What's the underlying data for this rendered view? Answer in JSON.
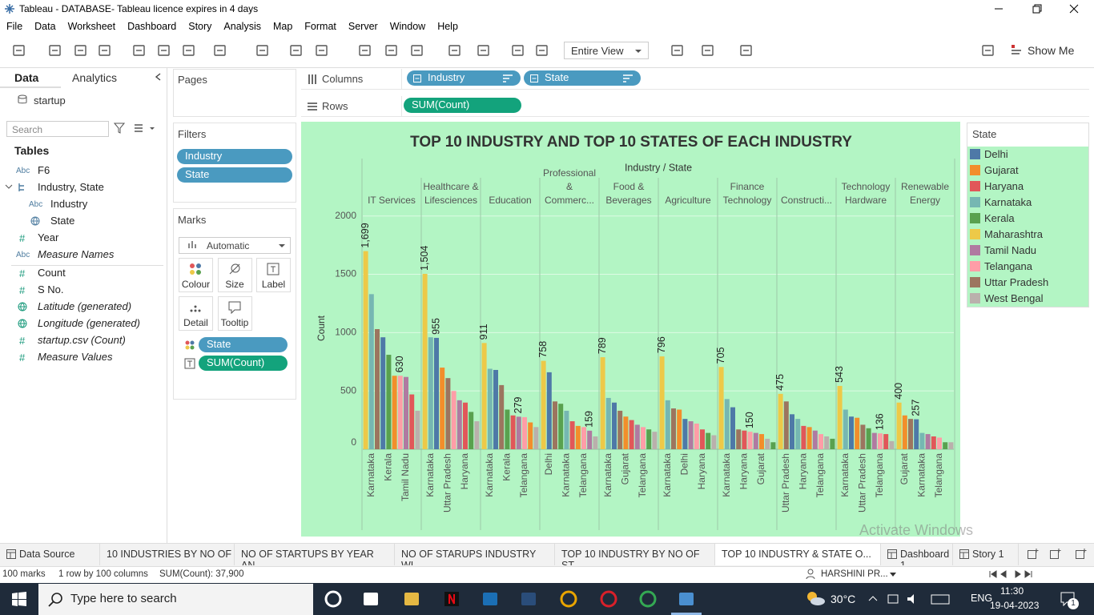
{
  "window": {
    "title": "Tableau - DATABASE- Tableau licence expires in 4 days"
  },
  "menu": [
    "File",
    "Data",
    "Worksheet",
    "Dashboard",
    "Story",
    "Analysis",
    "Map",
    "Format",
    "Server",
    "Window",
    "Help"
  ],
  "toolbar": {
    "fit": "Entire View",
    "show_me": "Show Me"
  },
  "data_pane": {
    "tabs": [
      "Data",
      "Analytics"
    ],
    "source": "startup",
    "search": "Search",
    "heading": "Tables",
    "fields": [
      {
        "icon": "Abc",
        "name": "F6"
      },
      {
        "icon": "hierarchy",
        "name": "Industry, State"
      },
      {
        "icon": "Abc",
        "name": "Industry",
        "indent": 1
      },
      {
        "icon": "globe",
        "role": "dimension",
        "name": "State",
        "indent": 1
      },
      {
        "icon": "#",
        "name": "Year"
      },
      {
        "icon": "Abc",
        "name": "Measure Names",
        "italic": true
      },
      {
        "icon": "#",
        "name": "Count"
      },
      {
        "icon": "#",
        "name": "S No."
      },
      {
        "icon": "globe",
        "role": "measure",
        "name": "Latitude (generated)",
        "italic": true
      },
      {
        "icon": "globe",
        "role": "measure",
        "name": "Longitude (generated)",
        "italic": true
      },
      {
        "icon": "#",
        "name": "startup.csv (Count)",
        "italic": true
      },
      {
        "icon": "#",
        "name": "Measure Values",
        "italic": true
      }
    ]
  },
  "pages_card": {
    "title": "Pages"
  },
  "filters_card": {
    "title": "Filters",
    "pills": [
      "Industry",
      "State"
    ]
  },
  "marks_card": {
    "title": "Marks",
    "mark_type": "Automatic",
    "buttons": [
      "Colour",
      "Size",
      "Label",
      "Detail",
      "Tooltip"
    ],
    "pills": [
      {
        "name": "State",
        "role": "dimension"
      },
      {
        "name": "SUM(Count)",
        "role": "measure"
      }
    ]
  },
  "shelves": {
    "columns": {
      "label": "Columns",
      "pills": [
        "Industry",
        "State"
      ]
    },
    "rows": {
      "label": "Rows",
      "pills": [
        "SUM(Count)"
      ]
    }
  },
  "chart_data": {
    "type": "bar",
    "title": "TOP 10 INDUSTRY AND TOP 10 STATES OF EACH INDUSTRY",
    "header": "Industry / State",
    "y_label": "Count",
    "background": "#b3f5c4",
    "ylim": [
      0,
      2060
    ],
    "yticks": [
      0,
      500,
      1000,
      1500,
      2000
    ],
    "grid": true,
    "panels": [
      {
        "name": "IT Services",
        "categories": [
          null,
          "Karnataka",
          null,
          null,
          "Kerala",
          null,
          null,
          "Tamil Nadu",
          null,
          null
        ],
        "values": [
          1699,
          1330,
          1030,
          960,
          810,
          630,
          630,
          620,
          470,
          330
        ],
        "value_labels": [
          "1,699",
          null,
          null,
          null,
          null,
          null,
          "630",
          null,
          null,
          null
        ],
        "colors": [
          "#edc948",
          "#76b7b2",
          "#9c755f",
          "#4e79a7",
          "#59a14f",
          "#f28e2b",
          "#ff9da7",
          "#b07aa1",
          "#e15759",
          "#bab0ac"
        ]
      },
      {
        "name": "Healthcare & Lifesciences",
        "categories": [
          null,
          "Karnataka",
          null,
          null,
          "Uttar Pradesh",
          null,
          null,
          "Haryana",
          null,
          null
        ],
        "values": [
          1504,
          960,
          955,
          700,
          610,
          500,
          420,
          400,
          320,
          240
        ],
        "value_labels": [
          "1,504",
          null,
          "955",
          null,
          null,
          null,
          null,
          null,
          null,
          null
        ],
        "colors": [
          "#edc948",
          "#76b7b2",
          "#4e79a7",
          "#f28e2b",
          "#9c755f",
          "#ff9da7",
          "#b07aa1",
          "#e15759",
          "#59a14f",
          "#bab0ac"
        ]
      },
      {
        "name": "Education",
        "categories": [
          null,
          "Karnataka",
          null,
          null,
          "Kerala",
          null,
          null,
          "Telangana",
          null,
          null
        ],
        "values": [
          911,
          690,
          680,
          550,
          340,
          290,
          279,
          275,
          230,
          190
        ],
        "value_labels": [
          "911",
          null,
          null,
          null,
          null,
          null,
          "279",
          null,
          null,
          null
        ],
        "colors": [
          "#edc948",
          "#76b7b2",
          "#4e79a7",
          "#9c755f",
          "#59a14f",
          "#e15759",
          "#b07aa1",
          "#ff9da7",
          "#f28e2b",
          "#bab0ac"
        ]
      },
      {
        "name": "Professional & Commerc...",
        "categories": [
          null,
          "Delhi",
          null,
          null,
          "Karnataka",
          null,
          null,
          "Telangana",
          null,
          null
        ],
        "values": [
          758,
          660,
          410,
          390,
          330,
          240,
          200,
          190,
          159,
          110
        ],
        "value_labels": [
          "758",
          null,
          null,
          null,
          null,
          null,
          null,
          null,
          "159",
          null
        ],
        "colors": [
          "#edc948",
          "#4e79a7",
          "#9c755f",
          "#59a14f",
          "#76b7b2",
          "#e15759",
          "#f28e2b",
          "#ff9da7",
          "#b07aa1",
          "#bab0ac"
        ]
      },
      {
        "name": "Food & Beverages",
        "categories": [
          null,
          "Karnataka",
          null,
          null,
          "Gujarat",
          null,
          null,
          "Telangana",
          null,
          null
        ],
        "values": [
          789,
          440,
          400,
          330,
          280,
          250,
          210,
          190,
          170,
          150
        ],
        "value_labels": [
          "789",
          null,
          null,
          null,
          null,
          null,
          null,
          null,
          null,
          null
        ],
        "colors": [
          "#edc948",
          "#76b7b2",
          "#4e79a7",
          "#9c755f",
          "#f28e2b",
          "#e15759",
          "#b07aa1",
          "#ff9da7",
          "#59a14f",
          "#bab0ac"
        ]
      },
      {
        "name": "Agriculture",
        "categories": [
          null,
          "Karnataka",
          null,
          null,
          "Delhi",
          null,
          null,
          "Haryana",
          null,
          null
        ],
        "values": [
          796,
          420,
          350,
          340,
          260,
          240,
          220,
          170,
          140,
          120
        ],
        "value_labels": [
          "796",
          null,
          null,
          null,
          null,
          null,
          null,
          null,
          null,
          null
        ],
        "colors": [
          "#edc948",
          "#76b7b2",
          "#9c755f",
          "#f28e2b",
          "#4e79a7",
          "#b07aa1",
          "#ff9da7",
          "#e15759",
          "#59a14f",
          "#bab0ac"
        ]
      },
      {
        "name": "Finance Technology",
        "categories": [
          null,
          "Karnataka",
          null,
          null,
          "Haryana",
          null,
          null,
          "Gujarat",
          null,
          null
        ],
        "values": [
          705,
          430,
          360,
          170,
          160,
          150,
          140,
          130,
          90,
          60
        ],
        "value_labels": [
          "705",
          null,
          null,
          null,
          null,
          "150",
          null,
          null,
          null,
          null
        ],
        "colors": [
          "#edc948",
          "#76b7b2",
          "#4e79a7",
          "#9c755f",
          "#e15759",
          "#ff9da7",
          "#b07aa1",
          "#f28e2b",
          "#bab0ac",
          "#59a14f"
        ]
      },
      {
        "name": "Constructi...",
        "categories": [
          null,
          "Uttar Pradesh",
          null,
          null,
          "Haryana",
          null,
          null,
          "Telangana",
          null,
          null
        ],
        "values": [
          475,
          410,
          300,
          260,
          200,
          190,
          160,
          130,
          110,
          90
        ],
        "value_labels": [
          "475",
          null,
          null,
          null,
          null,
          null,
          null,
          null,
          null,
          null
        ],
        "colors": [
          "#edc948",
          "#9c755f",
          "#4e79a7",
          "#76b7b2",
          "#e15759",
          "#f28e2b",
          "#b07aa1",
          "#ff9da7",
          "#bab0ac",
          "#59a14f"
        ]
      },
      {
        "name": "Technology Hardware",
        "categories": [
          null,
          "Karnataka",
          null,
          null,
          "Uttar Pradesh",
          null,
          null,
          "Telangana",
          null,
          null
        ],
        "values": [
          543,
          340,
          280,
          270,
          210,
          180,
          140,
          136,
          130,
          70
        ],
        "value_labels": [
          "543",
          null,
          null,
          null,
          null,
          null,
          null,
          "136",
          null,
          null
        ],
        "colors": [
          "#edc948",
          "#76b7b2",
          "#4e79a7",
          "#f28e2b",
          "#9c755f",
          "#59a14f",
          "#b07aa1",
          "#ff9da7",
          "#e15759",
          "#bab0ac"
        ]
      },
      {
        "name": "Renewable Energy",
        "categories": [
          null,
          "Gujarat",
          null,
          null,
          "Karnataka",
          null,
          null,
          "Telangana",
          null,
          null
        ],
        "values": [
          400,
          290,
          260,
          257,
          140,
          130,
          110,
          100,
          60,
          60
        ],
        "value_labels": [
          "400",
          null,
          null,
          "257",
          null,
          null,
          null,
          null,
          null,
          null
        ],
        "colors": [
          "#edc948",
          "#f28e2b",
          "#9c755f",
          "#4e79a7",
          "#76b7b2",
          "#b07aa1",
          "#e15759",
          "#ff9da7",
          "#59a14f",
          "#bab0ac"
        ]
      }
    ],
    "legend": {
      "title": "State",
      "items": [
        {
          "name": "Delhi",
          "color": "#4e79a7"
        },
        {
          "name": "Gujarat",
          "color": "#f28e2b"
        },
        {
          "name": "Haryana",
          "color": "#e15759"
        },
        {
          "name": "Karnataka",
          "color": "#76b7b2"
        },
        {
          "name": "Kerala",
          "color": "#59a14f"
        },
        {
          "name": "Maharashtra",
          "color": "#edc948"
        },
        {
          "name": "Tamil Nadu",
          "color": "#b07aa1"
        },
        {
          "name": "Telangana",
          "color": "#ff9da7"
        },
        {
          "name": "Uttar Pradesh",
          "color": "#9c755f"
        },
        {
          "name": "West Bengal",
          "color": "#bab0ac"
        }
      ]
    }
  },
  "sheet_tabs": {
    "items": [
      "Data Source",
      "10 INDUSTRIES BY NO OF ...",
      "NO OF STARTUPS BY YEAR AN...",
      "NO OF STARUPS INDUSTRY WI...",
      "TOP 10 INDUSTRY BY NO OF ST...",
      "TOP 10 INDUSTRY & STATE O...",
      "Dashboard 1",
      "Story 1"
    ],
    "active": 5
  },
  "status_bar": {
    "marks": "100 marks",
    "layout": "1 row by 100 columns",
    "sum": "SUM(Count): 37,900",
    "user": "HARSHINI PR..."
  },
  "taskbar": {
    "search": "Type here to search",
    "weather": "30°C",
    "language": "ENG",
    "time": "11:30",
    "date": "19-04-2023",
    "notifications": "1"
  },
  "watermark": {
    "title": "Activate Windows",
    "subtitle": "Go to Settings to activate Windows."
  }
}
